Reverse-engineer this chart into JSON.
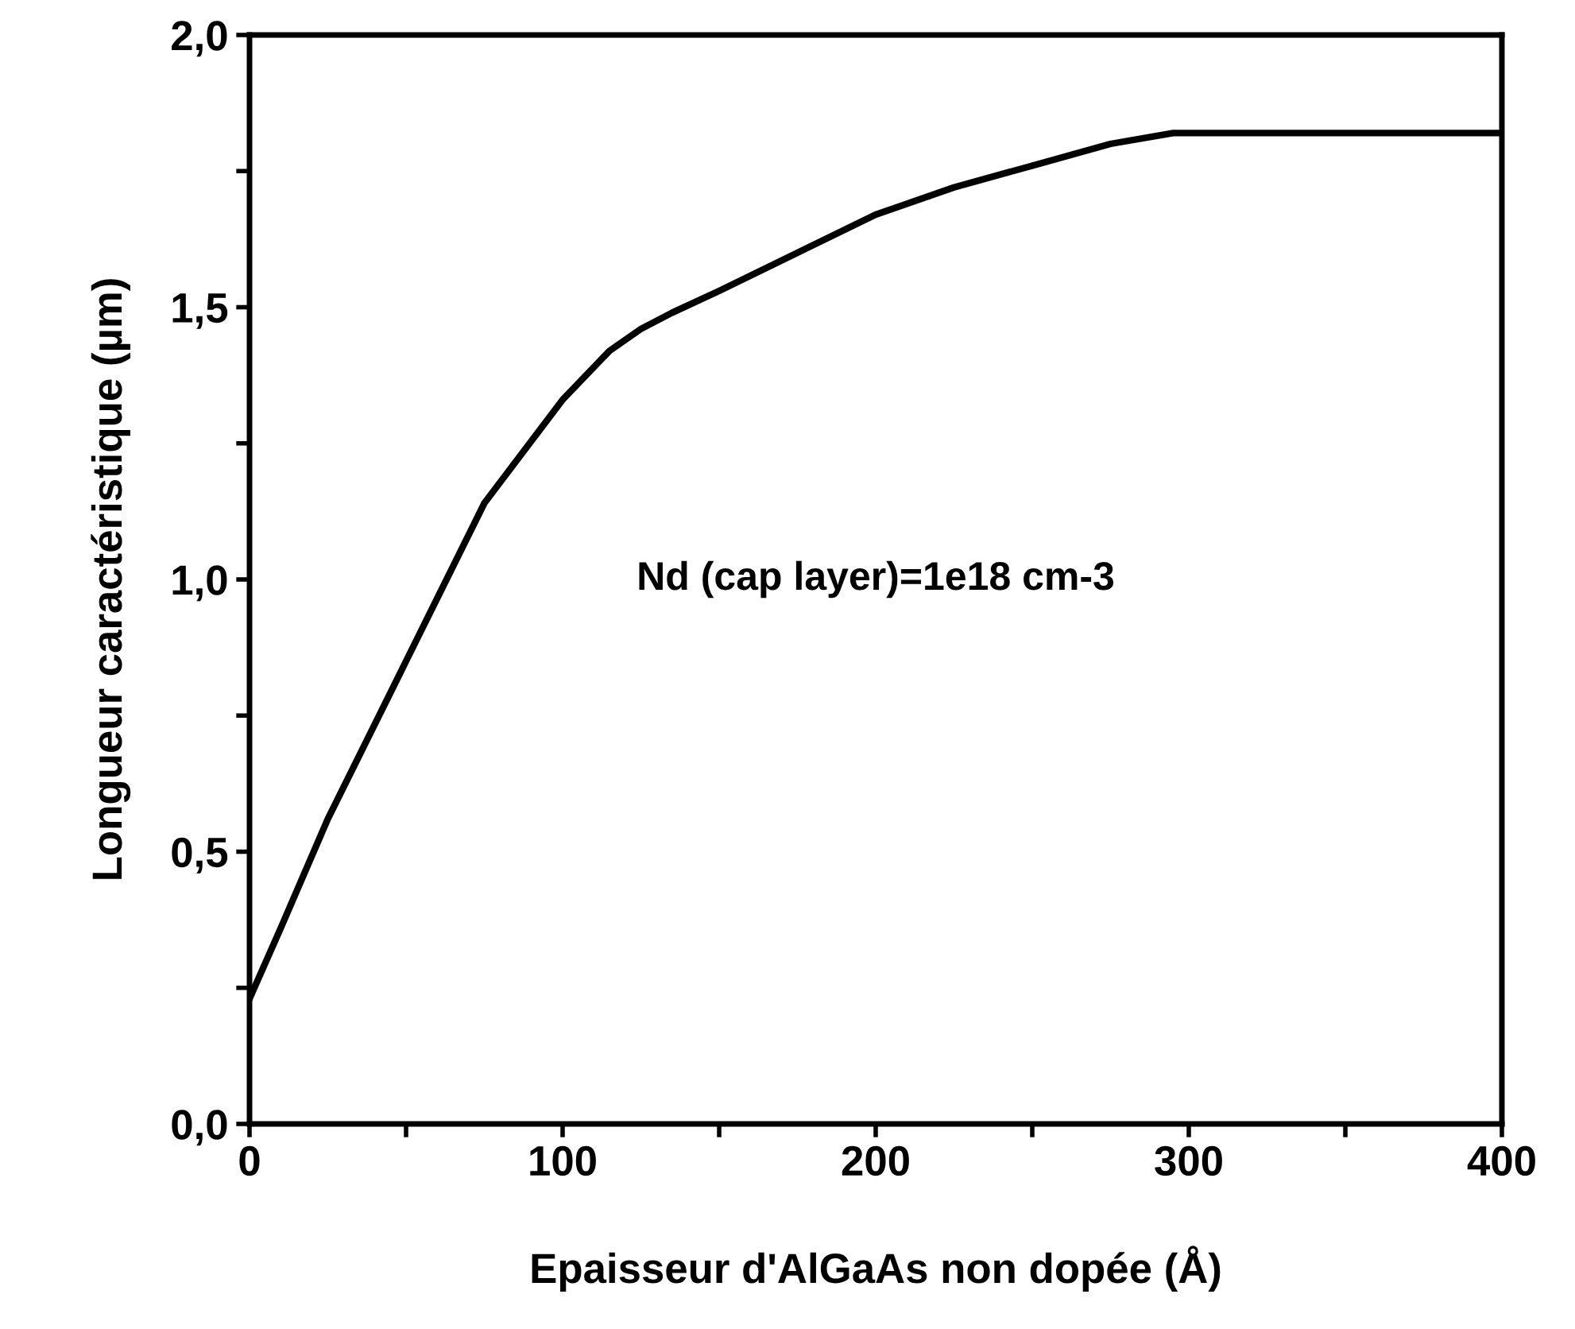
{
  "chart_data": {
    "type": "line",
    "xlabel": "Epaisseur d'AlGaAs non dopée (Å)",
    "ylabel": "Longueur caractéristique (µm)",
    "x": [
      0,
      10,
      25,
      50,
      75,
      100,
      115,
      125,
      135,
      150,
      175,
      200,
      225,
      250,
      275,
      295,
      350,
      400
    ],
    "series": [
      {
        "color": "#000000",
        "values": [
          0.23,
          0.36,
          0.56,
          0.85,
          1.14,
          1.33,
          1.42,
          1.46,
          1.49,
          1.53,
          1.6,
          1.67,
          1.72,
          1.76,
          1.8,
          1.82,
          1.82,
          1.82
        ]
      }
    ],
    "xlim": [
      0,
      400
    ],
    "xticks": [
      0,
      {
        "value": 50,
        "label": null
      },
      100,
      {
        "value": 150,
        "label": null
      },
      200,
      {
        "value": 250,
        "label": null
      },
      300,
      {
        "value": 350,
        "label": null
      },
      400
    ],
    "ylim": [
      0,
      2.0
    ],
    "yticks": [
      {
        "value": 0,
        "label": "0,0"
      },
      {
        "value": 0.25,
        "label": null
      },
      {
        "value": 0.5,
        "label": "0,5"
      },
      {
        "value": 0.75,
        "label": null
      },
      {
        "value": 1.0,
        "label": "1,0"
      },
      {
        "value": 1.25,
        "label": null
      },
      {
        "value": 1.5,
        "label": "1,5"
      },
      {
        "value": 1.75,
        "label": null
      },
      {
        "value": 2.0,
        "label": "2,0"
      }
    ],
    "annotations": [
      "Nd (cap layer)=1e18 cm-3"
    ],
    "grid": false,
    "legend": false,
    "marker": "none",
    "line_style": "solid"
  }
}
